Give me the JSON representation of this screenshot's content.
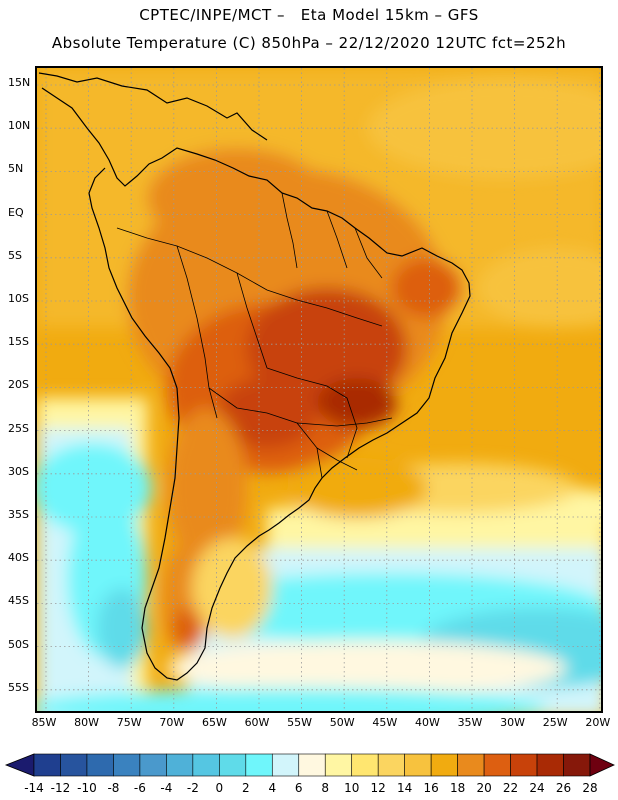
{
  "title_line1": "CPTEC/INPE/MCT –   Eta Model 15km – GFS",
  "title_line2": "Absolute Temperature (C) 850hPa – 22/12/2020 12UTC fct=252h",
  "lat_labels": [
    "15N",
    "10N",
    "5N",
    "EQ",
    "5S",
    "10S",
    "15S",
    "20S",
    "25S",
    "30S",
    "35S",
    "40S",
    "45S",
    "50S",
    "55S"
  ],
  "lon_labels": [
    "85W",
    "80W",
    "75W",
    "70W",
    "65W",
    "60W",
    "55W",
    "50W",
    "45W",
    "40W",
    "35W",
    "30W",
    "25W",
    "20W"
  ],
  "colorbar": {
    "labels": [
      "-14",
      "-12",
      "-10",
      "-8",
      "-6",
      "-4",
      "-2",
      "0",
      "2",
      "4",
      "6",
      "8",
      "10",
      "12",
      "14",
      "16",
      "18",
      "20",
      "22",
      "24",
      "26",
      "28"
    ],
    "colors": [
      "#1f3f8f",
      "#27549e",
      "#2e6aae",
      "#3a82bf",
      "#4a99cc",
      "#4fb1d8",
      "#55c6e2",
      "#5fdbe9",
      "#6ff6fb",
      "#d2f5fb",
      "#fff8e0",
      "#fff6a3",
      "#ffe670",
      "#fbd560",
      "#f7c23e",
      "#f1ab10",
      "#e98a1d",
      "#dd5f11",
      "#c8420a",
      "#a92a05",
      "#86180a"
    ],
    "low_arrow": "#1b1b6e",
    "high_arrow": "#6e0010"
  }
}
